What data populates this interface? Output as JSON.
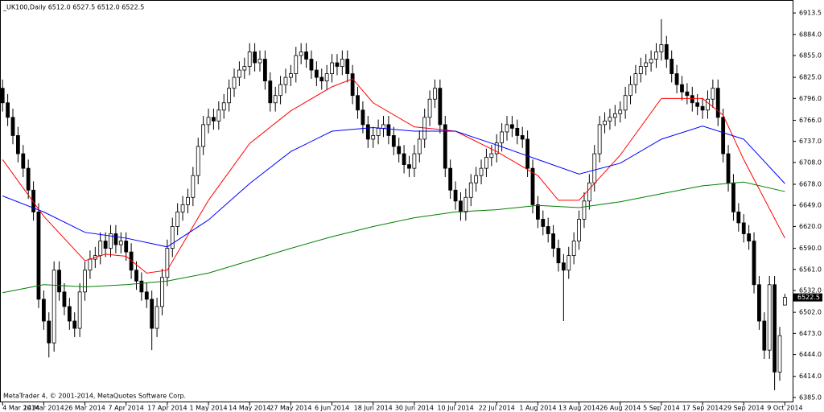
{
  "chart_data": {
    "type": "candlestick",
    "header": "_UK100,Daily  6512.0 6527.5 6512.0 6522.5",
    "footer": "MetaTrader 4, © 2001-2014, MetaQuotes Software Corp.",
    "xlim": [
      -0.5,
      153.5
    ],
    "ylim": [
      6378.3,
      6931.3
    ],
    "bull_color": "#ffffff",
    "bear_color": "#000000",
    "xticks": [
      {
        "value": 0,
        "label": "4 Mar 2014"
      },
      {
        "value": 8,
        "label": "14 Mar 2014"
      },
      {
        "value": 16,
        "label": "26 Mar 2014"
      },
      {
        "value": 24,
        "label": "7 Apr 2014"
      },
      {
        "value": 32,
        "label": "17 Apr 2014"
      },
      {
        "value": 40,
        "label": "1 May 2014"
      },
      {
        "value": 48,
        "label": "14 May 2014"
      },
      {
        "value": 56,
        "label": "27 May 2014"
      },
      {
        "value": 64,
        "label": "6 Jun 2014"
      },
      {
        "value": 72,
        "label": "18 Jun 2014"
      },
      {
        "value": 80,
        "label": "30 Jun 2014"
      },
      {
        "value": 88,
        "label": "10 Jul 2014"
      },
      {
        "value": 96,
        "label": "22 Jul 2014"
      },
      {
        "value": 104,
        "label": "1 Aug 2014"
      },
      {
        "value": 112,
        "label": "13 Aug 2014"
      },
      {
        "value": 120,
        "label": "26 Aug 2014"
      },
      {
        "value": 128,
        "label": "5 Sep 2014"
      },
      {
        "value": 136,
        "label": "17 Sep 2014"
      },
      {
        "value": 144,
        "label": "29 Sep 2014"
      },
      {
        "value": 152,
        "label": "9 Oct 2014"
      }
    ],
    "yticks": [
      {
        "value": 6913.5,
        "label": "6913.5"
      },
      {
        "value": 6884,
        "label": "6884.0"
      },
      {
        "value": 6855,
        "label": "6855.0"
      },
      {
        "value": 6825,
        "label": "6825.0"
      },
      {
        "value": 6796,
        "label": "6796.0"
      },
      {
        "value": 6766,
        "label": "6766.0"
      },
      {
        "value": 6737,
        "label": "6737.0"
      },
      {
        "value": 6708,
        "label": "6708.0"
      },
      {
        "value": 6678,
        "label": "6678.0"
      },
      {
        "value": 6649,
        "label": "6649.0"
      },
      {
        "value": 6620,
        "label": "6620.0"
      },
      {
        "value": 6590,
        "label": "6590.0"
      },
      {
        "value": 6561,
        "label": "6561.0"
      },
      {
        "value": 6532,
        "label": "6532.0"
      },
      {
        "value": 6502,
        "label": "6502.0"
      },
      {
        "value": 6473,
        "label": "6473.0"
      },
      {
        "value": 6444,
        "label": "6444.0"
      },
      {
        "value": 6414,
        "label": "6414.0"
      },
      {
        "value": 6385,
        "label": "6385.0"
      }
    ],
    "last_price": 6522.5,
    "open": [
      6810,
      6790,
      6770,
      6745,
      6720,
      6700,
      6670,
      6640,
      6520,
      6490,
      6460,
      6560,
      6530,
      6510,
      6490,
      6480,
      6530,
      6560,
      6575,
      6580,
      6600,
      6590,
      6610,
      6595,
      6600,
      6585,
      6560,
      6545,
      6530,
      6520,
      6480,
      6510,
      6550,
      6590,
      6620,
      6640,
      6650,
      6660,
      6690,
      6730,
      6760,
      6770,
      6765,
      6780,
      6790,
      6810,
      6825,
      6835,
      6840,
      6860,
      6845,
      6850,
      6820,
      6790,
      6800,
      6815,
      6825,
      6830,
      6855,
      6860,
      6850,
      6835,
      6825,
      6820,
      6830,
      6845,
      6840,
      6850,
      6830,
      6800,
      6780,
      6760,
      6740,
      6745,
      6755,
      6760,
      6745,
      6730,
      6720,
      6705,
      6700,
      6720,
      6740,
      6770,
      6795,
      6810,
      6760,
      6700,
      6670,
      6655,
      6640,
      6660,
      6680,
      6690,
      6700,
      6715,
      6720,
      6735,
      6750,
      6760,
      6755,
      6745,
      6740,
      6700,
      6650,
      6630,
      6620,
      6610,
      6590,
      6570,
      6560,
      6580,
      6600,
      6630,
      6655,
      6680,
      6720,
      6760,
      6765,
      6770,
      6775,
      6780,
      6800,
      6815,
      6830,
      6840,
      6845,
      6850,
      6860,
      6870,
      6850,
      6830,
      6815,
      6805,
      6800,
      6790,
      6785,
      6780,
      6795,
      6810,
      6770,
      6720,
      6680,
      6640,
      6625,
      6610,
      6600,
      6540,
      6490,
      6450,
      6540,
      6420,
      6512
    ],
    "high": [
      6822,
      6802,
      6782,
      6757,
      6732,
      6712,
      6682,
      6652,
      6532,
      6502,
      6572,
      6572,
      6542,
      6522,
      6502,
      6542,
      6572,
      6587,
      6592,
      6612,
      6612,
      6622,
      6622,
      6612,
      6612,
      6597,
      6572,
      6557,
      6542,
      6532,
      6522,
      6562,
      6602,
      6632,
      6652,
      6662,
      6672,
      6702,
      6742,
      6772,
      6782,
      6782,
      6792,
      6802,
      6822,
      6837,
      6847,
      6852,
      6872,
      6872,
      6862,
      6862,
      6832,
      6812,
      6827,
      6837,
      6842,
      6867,
      6872,
      6872,
      6862,
      6847,
      6837,
      6842,
      6857,
      6857,
      6862,
      6862,
      6842,
      6812,
      6792,
      6772,
      6757,
      6767,
      6772,
      6772,
      6757,
      6742,
      6732,
      6717,
      6732,
      6752,
      6782,
      6807,
      6822,
      6822,
      6772,
      6712,
      6682,
      6667,
      6672,
      6692,
      6702,
      6712,
      6727,
      6732,
      6747,
      6762,
      6772,
      6772,
      6767,
      6757,
      6752,
      6712,
      6662,
      6642,
      6632,
      6622,
      6602,
      6582,
      6592,
      6612,
      6642,
      6667,
      6692,
      6732,
      6772,
      6777,
      6782,
      6787,
      6792,
      6812,
      6827,
      6842,
      6852,
      6857,
      6862,
      6872,
      6905,
      6882,
      6862,
      6842,
      6827,
      6817,
      6812,
      6802,
      6797,
      6807,
      6822,
      6822,
      6782,
      6732,
      6692,
      6652,
      6637,
      6622,
      6612,
      6552,
      6502,
      6552,
      6552,
      6482,
      6527.5
    ],
    "low": [
      6778,
      6758,
      6733,
      6708,
      6688,
      6658,
      6628,
      6508,
      6478,
      6440,
      6448,
      6518,
      6498,
      6478,
      6468,
      6468,
      6518,
      6548,
      6563,
      6568,
      6578,
      6578,
      6583,
      6583,
      6573,
      6548,
      6533,
      6518,
      6508,
      6450,
      6468,
      6498,
      6538,
      6578,
      6608,
      6628,
      6638,
      6648,
      6678,
      6718,
      6748,
      6753,
      6753,
      6768,
      6778,
      6798,
      6813,
      6823,
      6828,
      6833,
      6833,
      6808,
      6778,
      6778,
      6788,
      6803,
      6813,
      6818,
      6843,
      6838,
      6823,
      6813,
      6808,
      6808,
      6818,
      6828,
      6828,
      6818,
      6788,
      6768,
      6748,
      6728,
      6728,
      6733,
      6743,
      6733,
      6718,
      6708,
      6693,
      6688,
      6688,
      6708,
      6728,
      6758,
      6783,
      6748,
      6688,
      6658,
      6643,
      6628,
      6628,
      6648,
      6668,
      6678,
      6688,
      6703,
      6708,
      6723,
      6738,
      6743,
      6733,
      6728,
      6688,
      6638,
      6618,
      6608,
      6598,
      6578,
      6558,
      6490,
      6548,
      6568,
      6588,
      6618,
      6643,
      6668,
      6708,
      6748,
      6753,
      6758,
      6763,
      6768,
      6788,
      6803,
      6818,
      6828,
      6833,
      6838,
      6848,
      6838,
      6818,
      6803,
      6793,
      6788,
      6778,
      6773,
      6768,
      6768,
      6783,
      6758,
      6708,
      6668,
      6628,
      6613,
      6598,
      6588,
      6528,
      6478,
      6438,
      6438,
      6395,
      6408,
      6512
    ],
    "close": [
      6790,
      6770,
      6745,
      6720,
      6700,
      6670,
      6640,
      6520,
      6490,
      6460,
      6560,
      6530,
      6510,
      6490,
      6480,
      6530,
      6560,
      6575,
      6580,
      6600,
      6590,
      6610,
      6595,
      6600,
      6585,
      6560,
      6545,
      6530,
      6520,
      6480,
      6510,
      6550,
      6590,
      6620,
      6640,
      6650,
      6660,
      6690,
      6730,
      6760,
      6770,
      6765,
      6780,
      6790,
      6810,
      6825,
      6835,
      6840,
      6860,
      6845,
      6850,
      6820,
      6790,
      6800,
      6815,
      6825,
      6830,
      6855,
      6860,
      6850,
      6835,
      6825,
      6820,
      6830,
      6845,
      6840,
      6850,
      6830,
      6800,
      6780,
      6760,
      6740,
      6745,
      6755,
      6760,
      6745,
      6730,
      6720,
      6705,
      6700,
      6720,
      6740,
      6770,
      6795,
      6810,
      6760,
      6700,
      6670,
      6655,
      6640,
      6660,
      6680,
      6690,
      6700,
      6715,
      6720,
      6735,
      6750,
      6760,
      6755,
      6745,
      6740,
      6700,
      6650,
      6630,
      6620,
      6610,
      6590,
      6570,
      6560,
      6580,
      6600,
      6630,
      6655,
      6680,
      6720,
      6760,
      6765,
      6770,
      6775,
      6780,
      6800,
      6815,
      6830,
      6840,
      6845,
      6850,
      6860,
      6870,
      6850,
      6830,
      6815,
      6805,
      6800,
      6790,
      6785,
      6780,
      6795,
      6810,
      6770,
      6720,
      6680,
      6640,
      6625,
      6610,
      6600,
      6540,
      6490,
      6450,
      6540,
      6420,
      6470,
      6522.5
    ],
    "moving_averages": [
      {
        "color": "#ff0000",
        "x": [
          0,
          8,
          16,
          20,
          24,
          28,
          32,
          40,
          48,
          56,
          64,
          68,
          72,
          80,
          88,
          96,
          104,
          108,
          112,
          120,
          128,
          136,
          140,
          144,
          152
        ],
        "values": [
          6712,
          6634,
          6573,
          6582,
          6579,
          6556,
          6560,
          6656,
          6734,
          6779,
          6812,
          6823,
          6790,
          6757,
          6751,
          6723,
          6690,
          6656,
          6656,
          6718,
          6796,
          6796,
          6773,
          6712,
          6604
        ]
      },
      {
        "color": "#0000ff",
        "x": [
          0,
          8,
          16,
          24,
          32,
          40,
          48,
          56,
          64,
          72,
          80,
          88,
          96,
          104,
          112,
          120,
          128,
          136,
          144,
          152
        ],
        "values": [
          6662,
          6640,
          6612,
          6604,
          6592,
          6629,
          6679,
          6723,
          6751,
          6756,
          6751,
          6751,
          6732,
          6712,
          6692,
          6707,
          6740,
          6758,
          6740,
          6679
        ]
      },
      {
        "color": "#008000",
        "x": [
          0,
          8,
          16,
          24,
          32,
          40,
          48,
          56,
          64,
          72,
          80,
          88,
          96,
          104,
          112,
          120,
          128,
          136,
          144,
          152
        ],
        "values": [
          6529,
          6540,
          6537,
          6540,
          6545,
          6556,
          6573,
          6590,
          6606,
          6620,
          6632,
          6640,
          6643,
          6649,
          6646,
          6654,
          6665,
          6676,
          6681,
          6668
        ]
      }
    ]
  }
}
